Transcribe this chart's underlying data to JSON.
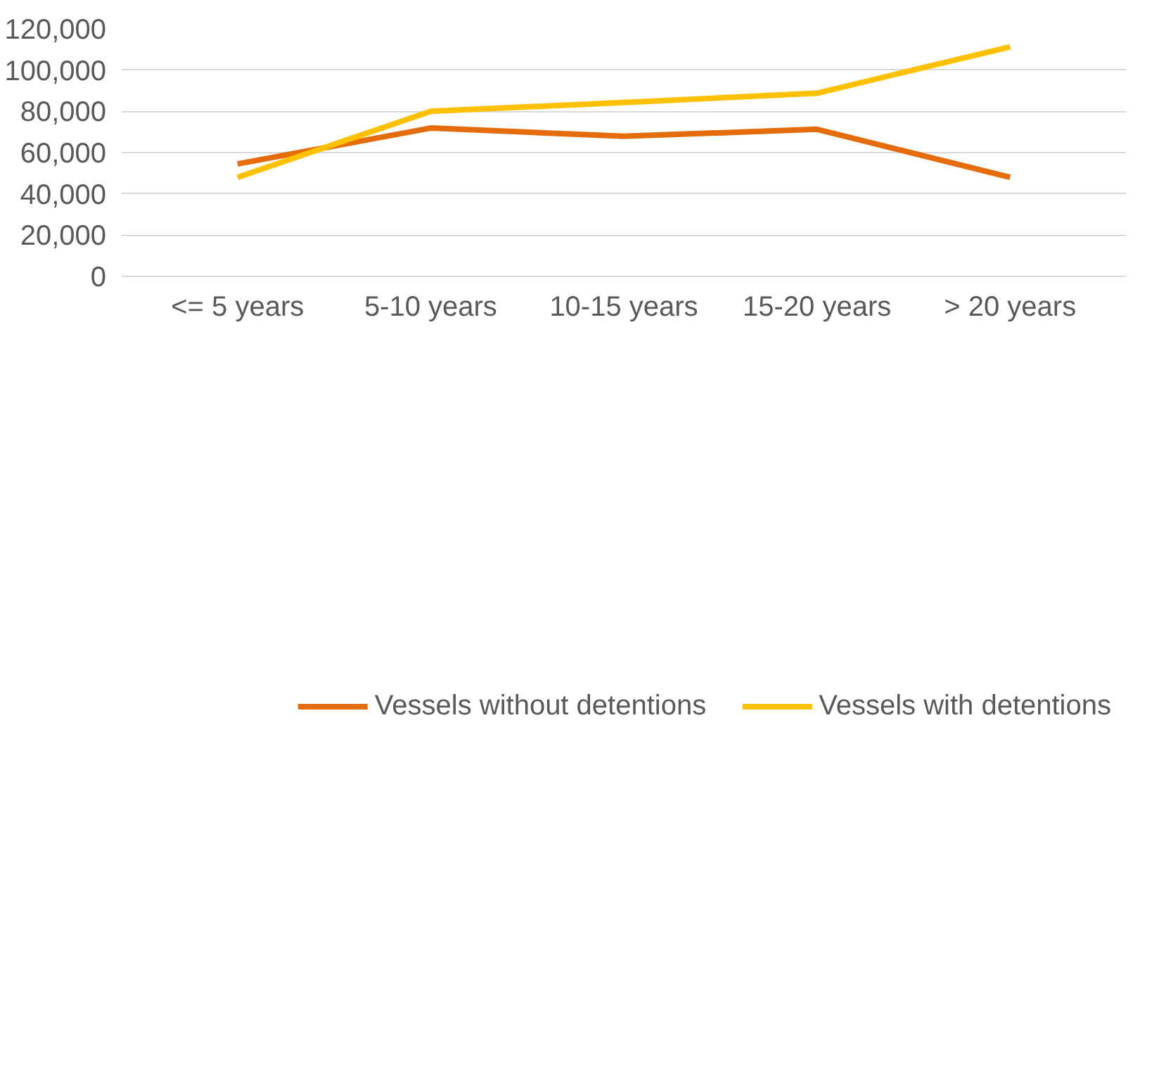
{
  "chart_data": {
    "type": "line",
    "categories": [
      "<= 5 years",
      "5-10 years",
      "10-15 years",
      "15-20 years",
      "> 20 years"
    ],
    "series": [
      {
        "name": "Vessels without detentions",
        "color": "#e46c0a",
        "values": [
          54500,
          71900,
          67900,
          71300,
          48000
        ]
      },
      {
        "name": "Vessels with detentions",
        "color": "#ffc000",
        "values": [
          48000,
          80000,
          84300,
          88800,
          111300
        ]
      }
    ],
    "ylim": [
      0,
      120000
    ],
    "yticks": [
      {
        "value": 0,
        "label": "0"
      },
      {
        "value": 20000,
        "label": "20,000"
      },
      {
        "value": 40000,
        "label": "40,000"
      },
      {
        "value": 60000,
        "label": "60,000"
      },
      {
        "value": 80000,
        "label": "80,000"
      },
      {
        "value": 100000,
        "label": "100,000"
      },
      {
        "value": 120000,
        "label": "120,000"
      }
    ],
    "grid": "y",
    "legend": "bottom",
    "marker": "none",
    "line_style": "solid"
  }
}
